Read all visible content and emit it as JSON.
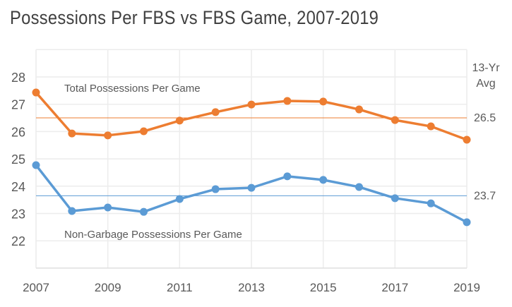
{
  "chart_data": {
    "type": "line",
    "title": "Possessions Per FBS vs FBS Game, 2007-2019",
    "x": [
      2007,
      2008,
      2009,
      2010,
      2011,
      2012,
      2013,
      2014,
      2015,
      2016,
      2017,
      2018,
      2019
    ],
    "xticks": [
      "2007",
      "2009",
      "2011",
      "2013",
      "2015",
      "2017",
      "2019"
    ],
    "yticks": [
      "22",
      "23",
      "24",
      "25",
      "26",
      "27",
      "28"
    ],
    "ylim": [
      21,
      29
    ],
    "grid": true,
    "series": [
      {
        "name": "Total Possessions Per Game",
        "color": "#ED7D31",
        "values": [
          27.43,
          25.93,
          25.86,
          26.01,
          26.4,
          26.71,
          26.99,
          27.12,
          27.1,
          26.81,
          26.42,
          26.19,
          25.7
        ],
        "avg": 26.5,
        "avg_label": "26.5"
      },
      {
        "name": "Non-Garbage Possessions Per Game",
        "color": "#5B9BD5",
        "values": [
          24.77,
          23.09,
          23.22,
          23.06,
          23.53,
          23.89,
          23.94,
          24.36,
          24.23,
          23.97,
          23.56,
          23.37,
          22.68
        ],
        "avg": 23.65,
        "avg_label": "23.7"
      }
    ],
    "avg_header": [
      "13-Yr",
      "Avg"
    ]
  }
}
